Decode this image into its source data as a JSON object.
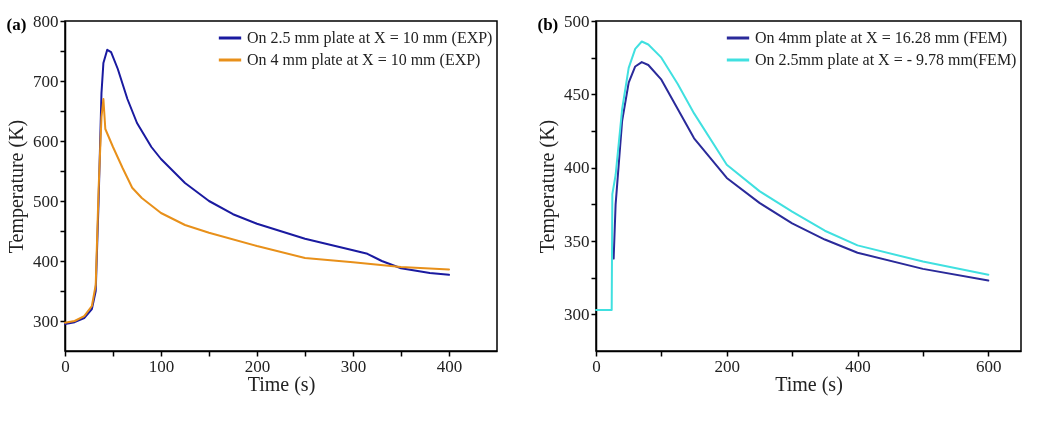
{
  "chart_data": [
    {
      "type": "line",
      "title": "(a)",
      "xlabel": "Time (s)",
      "ylabel": "Temperature (K)",
      "xlim": [
        0,
        450
      ],
      "ylim": [
        250,
        800
      ],
      "xticks": [
        0,
        {
          "value": 50,
          "label": null
        },
        100,
        {
          "value": 150,
          "label": null
        },
        200,
        {
          "value": 250,
          "label": null
        },
        300,
        {
          "value": 350,
          "label": null
        },
        400
      ],
      "yticks": [
        300,
        {
          "value": 350,
          "label": null
        },
        400,
        {
          "value": 450,
          "label": null
        },
        500,
        {
          "value": 550,
          "label": null
        },
        600,
        {
          "value": 650,
          "label": null
        },
        700,
        {
          "value": 750,
          "label": null
        },
        800
      ],
      "legend": "top right",
      "grid": false,
      "series": [
        {
          "name": "On 2.5 mm plate at X = 10 mm (EXP)",
          "color": "#1a1aa0",
          "x": [
            0,
            10,
            20,
            28,
            32,
            35,
            38,
            40,
            44,
            48,
            55,
            65,
            75,
            90,
            100,
            125,
            150,
            175,
            200,
            250,
            300,
            315,
            330,
            350,
            380,
            400
          ],
          "values": [
            295,
            298,
            305,
            320,
            350,
            500,
            680,
            730,
            752,
            748,
            720,
            670,
            630,
            590,
            570,
            530,
            500,
            478,
            462,
            437,
            418,
            412,
            400,
            388,
            380,
            377
          ]
        },
        {
          "name": "On 4  mm  plate at X = 10 mm  (EXP)",
          "color": "#e8901a",
          "x": [
            0,
            10,
            20,
            28,
            32,
            35,
            38,
            40,
            42,
            50,
            60,
            70,
            80,
            100,
            125,
            150,
            200,
            250,
            300,
            350,
            400
          ],
          "values": [
            297,
            300,
            308,
            325,
            360,
            520,
            640,
            670,
            620,
            590,
            555,
            522,
            505,
            480,
            460,
            447,
            425,
            405,
            398,
            390,
            386
          ]
        }
      ]
    },
    {
      "type": "line",
      "title": "(b)",
      "xlabel": "Time (s)",
      "ylabel": "Temperature (K)",
      "xlim": [
        0,
        650
      ],
      "ylim": [
        275,
        500
      ],
      "xticks": [
        0,
        {
          "value": 100,
          "label": null
        },
        200,
        {
          "value": 300,
          "label": null
        },
        400,
        {
          "value": 500,
          "label": null
        },
        600
      ],
      "yticks": [
        300,
        {
          "value": 325,
          "label": null
        },
        350,
        {
          "value": 375,
          "label": null
        },
        400,
        {
          "value": 425,
          "label": null
        },
        450,
        {
          "value": 475,
          "label": null
        },
        500
      ],
      "legend": "top right",
      "grid": false,
      "series": [
        {
          "name": "On 4mm plate at X = 16.28 mm   (FEM)",
          "color": "#2a2a9a",
          "x": [
            27,
            30,
            40,
            50,
            60,
            70,
            80,
            100,
            125,
            150,
            200,
            250,
            300,
            350,
            400,
            500,
            600
          ],
          "values": [
            338,
            375,
            432,
            458,
            469,
            472,
            470,
            460,
            440,
            420,
            393,
            376,
            362,
            351,
            342,
            331,
            323
          ]
        },
        {
          "name": "On 2.5mm plate at X = - 9.78 mm(FEM)",
          "color": "#40e0e0",
          "x": [
            0,
            24,
            25,
            30,
            40,
            50,
            60,
            70,
            80,
            100,
            125,
            150,
            200,
            250,
            300,
            350,
            400,
            500,
            600
          ],
          "values": [
            303,
            303,
            382,
            395,
            440,
            468,
            481,
            486,
            484,
            475,
            457,
            437,
            402,
            384,
            370,
            357,
            347,
            336,
            327
          ]
        }
      ]
    }
  ]
}
